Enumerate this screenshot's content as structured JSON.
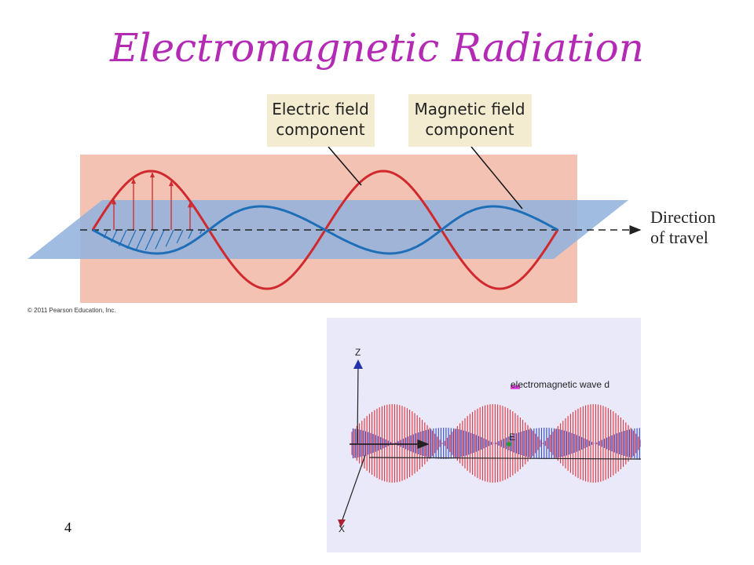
{
  "title": "Electromagnetic Radiation",
  "figure1": {
    "electric_callout": [
      "Electric field",
      "component"
    ],
    "magnetic_callout": [
      "Magnetic field",
      "component"
    ],
    "direction": [
      "Direction",
      "of travel"
    ],
    "copyright": "© 2011 Pearson Education, Inc."
  },
  "figure2": {
    "z_label": "Z",
    "x_label": "X",
    "e_label": "E",
    "legend": "electromagnetic wave d"
  },
  "slide_number": "4"
}
